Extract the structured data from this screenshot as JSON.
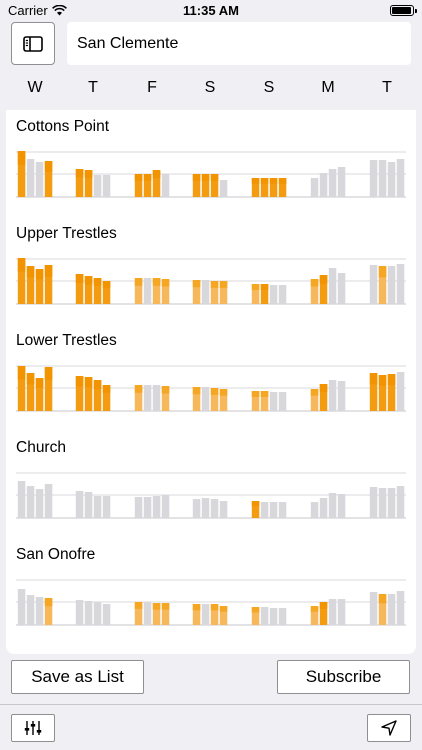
{
  "status": {
    "carrier": "Carrier",
    "time": "11:35 AM",
    "battery_level": 0.95
  },
  "search": {
    "location": "San Clemente"
  },
  "days": [
    "W",
    "T",
    "F",
    "S",
    "S",
    "M",
    "T"
  ],
  "colors": {
    "good": "#f7b75b",
    "great": "#f39c12",
    "poor": "#d8d8dc",
    "background": "#efeff4"
  },
  "spots": [
    {
      "name": "Cottons Point",
      "bars": [
        [
          [
            46,
            3
          ],
          [
            38,
            1
          ],
          [
            35,
            1
          ],
          [
            36,
            3
          ]
        ],
        [
          [
            28,
            3
          ],
          [
            27,
            3
          ],
          [
            22,
            1
          ],
          [
            22,
            1
          ]
        ],
        [
          [
            23,
            3
          ],
          [
            23,
            3
          ],
          [
            27,
            3
          ],
          [
            23,
            1
          ]
        ],
        [
          [
            23,
            3
          ],
          [
            23,
            3
          ],
          [
            23,
            3
          ],
          [
            17,
            1
          ]
        ],
        [
          [
            19,
            3
          ],
          [
            19,
            3
          ],
          [
            19,
            3
          ],
          [
            19,
            3
          ]
        ],
        [
          [
            19,
            1
          ],
          [
            24,
            1
          ],
          [
            28,
            1
          ],
          [
            30,
            1
          ]
        ],
        [
          [
            37,
            1
          ],
          [
            37,
            1
          ],
          [
            35,
            1
          ],
          [
            38,
            1
          ]
        ]
      ]
    },
    {
      "name": "Upper Trestles",
      "bars": [
        [
          [
            46,
            3
          ],
          [
            38,
            3
          ],
          [
            35,
            3
          ],
          [
            39,
            3
          ]
        ],
        [
          [
            30,
            3
          ],
          [
            28,
            3
          ],
          [
            26,
            3
          ],
          [
            23,
            3
          ]
        ],
        [
          [
            26,
            2
          ],
          [
            26,
            1
          ],
          [
            26,
            2
          ],
          [
            25,
            2
          ]
        ],
        [
          [
            24,
            2
          ],
          [
            24,
            1
          ],
          [
            23,
            2
          ],
          [
            23,
            2
          ]
        ],
        [
          [
            20,
            2
          ],
          [
            20,
            3
          ],
          [
            19,
            1
          ],
          [
            19,
            1
          ]
        ],
        [
          [
            25,
            2
          ],
          [
            29,
            3
          ],
          [
            36,
            1
          ],
          [
            31,
            1
          ]
        ],
        [
          [
            39,
            1
          ],
          [
            38,
            2
          ],
          [
            38,
            1
          ],
          [
            40,
            1
          ]
        ]
      ]
    },
    {
      "name": "Lower Trestles",
      "bars": [
        [
          [
            45,
            3
          ],
          [
            38,
            3
          ],
          [
            33,
            3
          ],
          [
            44,
            3
          ]
        ],
        [
          [
            35,
            3
          ],
          [
            34,
            3
          ],
          [
            31,
            3
          ],
          [
            26,
            3
          ]
        ],
        [
          [
            26,
            2
          ],
          [
            26,
            1
          ],
          [
            26,
            1
          ],
          [
            25,
            2
          ]
        ],
        [
          [
            24,
            2
          ],
          [
            24,
            1
          ],
          [
            23,
            2
          ],
          [
            22,
            2
          ]
        ],
        [
          [
            20,
            2
          ],
          [
            20,
            2
          ],
          [
            19,
            1
          ],
          [
            19,
            1
          ]
        ],
        [
          [
            22,
            2
          ],
          [
            27,
            3
          ],
          [
            31,
            1
          ],
          [
            30,
            1
          ]
        ],
        [
          [
            38,
            3
          ],
          [
            36,
            3
          ],
          [
            37,
            3
          ],
          [
            39,
            1
          ]
        ]
      ]
    },
    {
      "name": "Church",
      "bars": [
        [
          [
            37,
            1
          ],
          [
            32,
            1
          ],
          [
            29,
            1
          ],
          [
            34,
            1
          ]
        ],
        [
          [
            27,
            1
          ],
          [
            26,
            1
          ],
          [
            22,
            1
          ],
          [
            22,
            1
          ]
        ],
        [
          [
            21,
            1
          ],
          [
            21,
            1
          ],
          [
            22,
            1
          ],
          [
            23,
            1
          ]
        ],
        [
          [
            19,
            1
          ],
          [
            20,
            1
          ],
          [
            19,
            1
          ],
          [
            17,
            1
          ]
        ],
        [
          [
            17,
            3
          ],
          [
            16,
            1
          ],
          [
            16,
            1
          ],
          [
            16,
            1
          ]
        ],
        [
          [
            16,
            1
          ],
          [
            20,
            1
          ],
          [
            25,
            1
          ],
          [
            24,
            1
          ]
        ],
        [
          [
            31,
            1
          ],
          [
            30,
            1
          ],
          [
            30,
            1
          ],
          [
            32,
            1
          ]
        ]
      ]
    },
    {
      "name": "San Onofre",
      "bars": [
        [
          [
            36,
            1
          ],
          [
            30,
            1
          ],
          [
            28,
            1
          ],
          [
            27,
            2
          ]
        ],
        [
          [
            25,
            1
          ],
          [
            24,
            1
          ],
          [
            23,
            1
          ],
          [
            21,
            1
          ]
        ],
        [
          [
            23,
            2
          ],
          [
            23,
            1
          ],
          [
            22,
            2
          ],
          [
            22,
            2
          ]
        ],
        [
          [
            21,
            2
          ],
          [
            21,
            1
          ],
          [
            21,
            2
          ],
          [
            19,
            2
          ]
        ],
        [
          [
            18,
            2
          ],
          [
            18,
            1
          ],
          [
            17,
            1
          ],
          [
            17,
            1
          ]
        ],
        [
          [
            19,
            2
          ],
          [
            23,
            3
          ],
          [
            26,
            1
          ],
          [
            26,
            1
          ]
        ],
        [
          [
            33,
            1
          ],
          [
            31,
            2
          ],
          [
            31,
            1
          ],
          [
            34,
            1
          ]
        ]
      ]
    }
  ],
  "actions": {
    "save_list": "Save as List",
    "subscribe": "Subscribe"
  },
  "toolbar": {
    "filter_icon": "sliders-icon",
    "location_icon": "location-arrow-icon"
  }
}
